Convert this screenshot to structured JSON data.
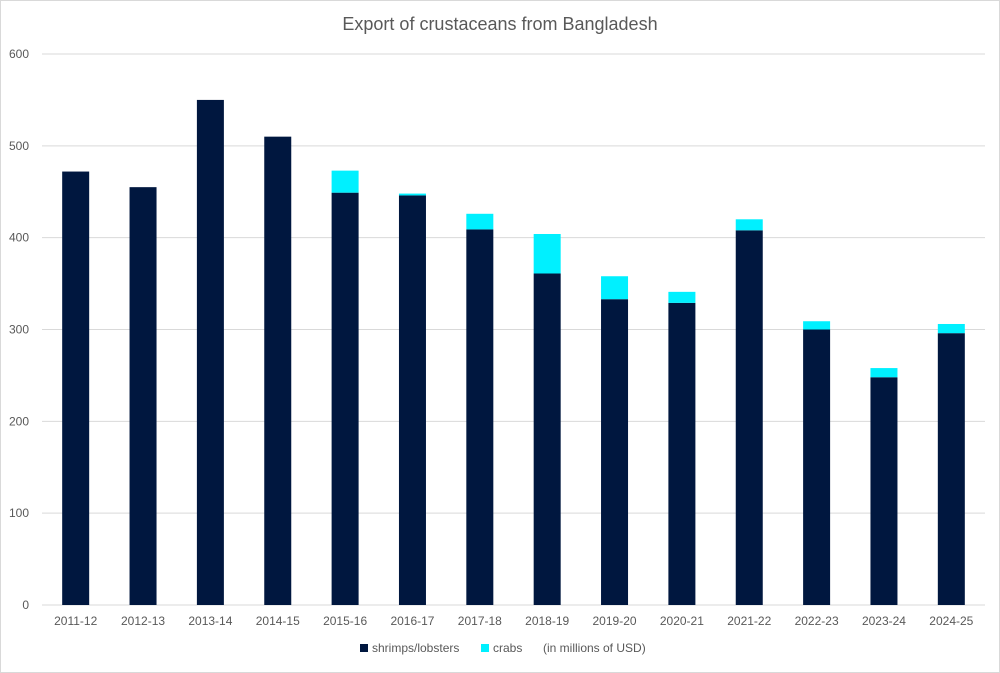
{
  "chart_data": {
    "type": "bar",
    "stacked": true,
    "title": "Export of crustaceans from Bangladesh",
    "xlabel": "",
    "ylabel": "",
    "ylim": [
      0,
      600
    ],
    "yticks": [
      0,
      100,
      200,
      300,
      400,
      500,
      600
    ],
    "grid": true,
    "categories": [
      "2011-12",
      "2012-13",
      "2013-14",
      "2014-15",
      "2015-16",
      "2016-17",
      "2017-18",
      "2018-19",
      "2019-20",
      "2020-21",
      "2021-22",
      "2022-23",
      "2023-24",
      "2024-25"
    ],
    "series": [
      {
        "name": "shrimps/lobsters",
        "color": "#00173f",
        "values": [
          472,
          455,
          550,
          510,
          449,
          446,
          409,
          361,
          333,
          329,
          408,
          300,
          248,
          296
        ]
      },
      {
        "name": "crabs",
        "color": "#00f0ff",
        "values": [
          0,
          0,
          0,
          0,
          24,
          2,
          17,
          43,
          25,
          12,
          12,
          9,
          10,
          10
        ]
      }
    ],
    "note": "(in millions of USD)",
    "legend_position": "bottom"
  }
}
